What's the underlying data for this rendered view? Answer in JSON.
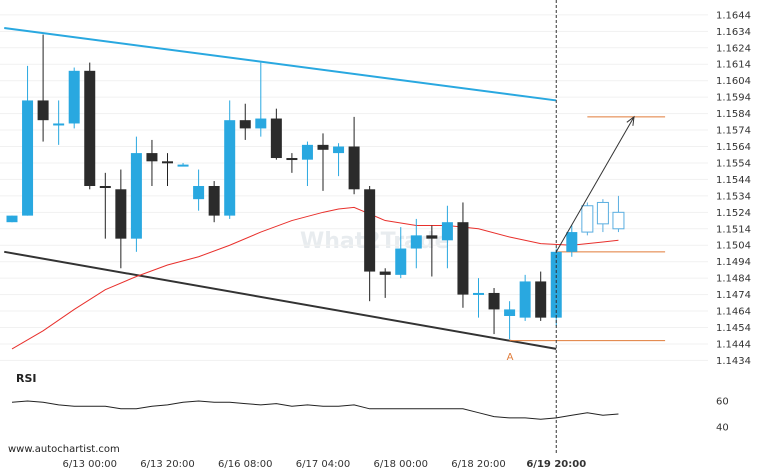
{
  "chart_data": {
    "type": "candlestick",
    "y_ticks": [
      "1.1644",
      "1.1634",
      "1.1624",
      "1.1614",
      "1.1604",
      "1.1594",
      "1.1584",
      "1.1574",
      "1.1564",
      "1.1554",
      "1.1544",
      "1.1534",
      "1.1524",
      "1.1514",
      "1.1504",
      "1.1494",
      "1.1484",
      "1.1474",
      "1.1464",
      "1.1454",
      "1.1444",
      "1.1434"
    ],
    "ylim": [
      1.143,
      1.165
    ],
    "x_ticks": [
      {
        "label": "6/13 00:00",
        "index": 5,
        "bold": false
      },
      {
        "label": "6/13 20:00",
        "index": 10,
        "bold": false
      },
      {
        "label": "6/16 08:00",
        "index": 15,
        "bold": false
      },
      {
        "label": "6/17 04:00",
        "index": 20,
        "bold": false
      },
      {
        "label": "6/18 00:00",
        "index": 25,
        "bold": false
      },
      {
        "label": "6/18 20:00",
        "index": 30,
        "bold": false
      },
      {
        "label": "6/19 20:00",
        "index": 35,
        "bold": true
      }
    ],
    "candles": [
      {
        "o": 1.1518,
        "h": 1.1522,
        "l": 1.1518,
        "c": 1.1522
      },
      {
        "o": 1.1522,
        "h": 1.1613,
        "l": 1.1522,
        "c": 1.1592
      },
      {
        "o": 1.1592,
        "h": 1.1632,
        "l": 1.1567,
        "c": 1.158
      },
      {
        "o": 1.1578,
        "h": 1.1592,
        "l": 1.1565,
        "c": 1.1578
      },
      {
        "o": 1.1578,
        "h": 1.1612,
        "l": 1.1575,
        "c": 1.161
      },
      {
        "o": 1.161,
        "h": 1.1615,
        "l": 1.1538,
        "c": 1.154
      },
      {
        "o": 1.154,
        "h": 1.1548,
        "l": 1.1508,
        "c": 1.1539
      },
      {
        "o": 1.1538,
        "h": 1.155,
        "l": 1.149,
        "c": 1.1508
      },
      {
        "o": 1.1508,
        "h": 1.157,
        "l": 1.15,
        "c": 1.156
      },
      {
        "o": 1.156,
        "h": 1.1568,
        "l": 1.154,
        "c": 1.1555
      },
      {
        "o": 1.1555,
        "h": 1.156,
        "l": 1.154,
        "c": 1.1554
      },
      {
        "o": 1.1553,
        "h": 1.1554,
        "l": 1.1552,
        "c": 1.1553
      },
      {
        "o": 1.1532,
        "h": 1.155,
        "l": 1.1525,
        "c": 1.154
      },
      {
        "o": 1.154,
        "h": 1.1543,
        "l": 1.1518,
        "c": 1.1522
      },
      {
        "o": 1.1522,
        "h": 1.1592,
        "l": 1.152,
        "c": 1.158
      },
      {
        "o": 1.158,
        "h": 1.159,
        "l": 1.1568,
        "c": 1.1575
      },
      {
        "o": 1.1575,
        "h": 1.1615,
        "l": 1.157,
        "c": 1.1581
      },
      {
        "o": 1.1581,
        "h": 1.1587,
        "l": 1.1556,
        "c": 1.1557
      },
      {
        "o": 1.1557,
        "h": 1.156,
        "l": 1.1548,
        "c": 1.1556
      },
      {
        "o": 1.1556,
        "h": 1.1567,
        "l": 1.154,
        "c": 1.1565
      },
      {
        "o": 1.1565,
        "h": 1.1572,
        "l": 1.1537,
        "c": 1.1562
      },
      {
        "o": 1.156,
        "h": 1.1566,
        "l": 1.1546,
        "c": 1.1564
      },
      {
        "o": 1.1564,
        "h": 1.1582,
        "l": 1.1535,
        "c": 1.1538
      },
      {
        "o": 1.1538,
        "h": 1.154,
        "l": 1.147,
        "c": 1.1488
      },
      {
        "o": 1.1488,
        "h": 1.149,
        "l": 1.1472,
        "c": 1.1486
      },
      {
        "o": 1.1486,
        "h": 1.1515,
        "l": 1.1484,
        "c": 1.1502
      },
      {
        "o": 1.1502,
        "h": 1.152,
        "l": 1.149,
        "c": 1.151
      },
      {
        "o": 1.151,
        "h": 1.1516,
        "l": 1.1485,
        "c": 1.1508
      },
      {
        "o": 1.1507,
        "h": 1.1528,
        "l": 1.149,
        "c": 1.1518
      },
      {
        "o": 1.1518,
        "h": 1.153,
        "l": 1.1466,
        "c": 1.1474
      },
      {
        "o": 1.1474,
        "h": 1.1484,
        "l": 1.146,
        "c": 1.1475
      },
      {
        "o": 1.1475,
        "h": 1.1478,
        "l": 1.145,
        "c": 1.1465
      },
      {
        "o": 1.1461,
        "h": 1.147,
        "l": 1.1447,
        "c": 1.1465
      },
      {
        "o": 1.146,
        "h": 1.1486,
        "l": 1.1458,
        "c": 1.1482
      },
      {
        "o": 1.1482,
        "h": 1.1488,
        "l": 1.1458,
        "c": 1.146
      },
      {
        "o": 1.146,
        "h": 1.1502,
        "l": 1.1455,
        "c": 1.15
      },
      {
        "o": 1.15,
        "h": 1.1516,
        "l": 1.1497,
        "c": 1.1512
      },
      {
        "o": 1.1512,
        "h": 1.153,
        "l": 1.151,
        "c": 1.1528
      },
      {
        "o": 1.1517,
        "h": 1.1532,
        "l": 1.1512,
        "c": 1.153
      },
      {
        "o": 1.1514,
        "h": 1.1534,
        "l": 1.1512,
        "c": 1.1524
      }
    ],
    "ma_line": [
      {
        "i": 0,
        "v": 1.1441
      },
      {
        "i": 2,
        "v": 1.1452
      },
      {
        "i": 4,
        "v": 1.1465
      },
      {
        "i": 6,
        "v": 1.1477
      },
      {
        "i": 8,
        "v": 1.1485
      },
      {
        "i": 10,
        "v": 1.1492
      },
      {
        "i": 12,
        "v": 1.1497
      },
      {
        "i": 14,
        "v": 1.1504
      },
      {
        "i": 16,
        "v": 1.1512
      },
      {
        "i": 18,
        "v": 1.1519
      },
      {
        "i": 20,
        "v": 1.1524
      },
      {
        "i": 21,
        "v": 1.1526
      },
      {
        "i": 22,
        "v": 1.1527
      },
      {
        "i": 23,
        "v": 1.1523
      },
      {
        "i": 24,
        "v": 1.1519
      },
      {
        "i": 26,
        "v": 1.1516
      },
      {
        "i": 28,
        "v": 1.1516
      },
      {
        "i": 30,
        "v": 1.1514
      },
      {
        "i": 32,
        "v": 1.1509
      },
      {
        "i": 34,
        "v": 1.1505
      },
      {
        "i": 36,
        "v": 1.1504
      },
      {
        "i": 37,
        "v": 1.1505
      },
      {
        "i": 38,
        "v": 1.1506
      },
      {
        "i": 39,
        "v": 1.1507
      }
    ],
    "upper_channel": {
      "from": {
        "i": -0.5,
        "v": 1.1636
      },
      "to": {
        "i": 35,
        "v": 1.1592
      }
    },
    "lower_channel": {
      "from": {
        "i": -0.5,
        "v": 1.15
      },
      "to": {
        "i": 35,
        "v": 1.1441
      }
    },
    "levels": [
      {
        "v": 1.1582,
        "from_i": 37,
        "to_i": 42
      },
      {
        "v": 1.15,
        "from_i": 35,
        "to_i": 42
      },
      {
        "v": 1.1446,
        "from_i": 32,
        "to_i": 42
      }
    ],
    "forecast_arrow": {
      "from": {
        "i": 35,
        "v": 1.15
      },
      "to": {
        "i": 40,
        "v": 1.1582
      }
    },
    "point_label": {
      "text": "A",
      "i": 32,
      "v": 1.1439
    },
    "vline_index": 35,
    "rsi": {
      "label": "RSI",
      "ticks": [
        "60",
        "40"
      ],
      "ylim": [
        30,
        70
      ],
      "values": [
        59,
        60,
        59,
        57,
        56,
        56,
        56,
        54,
        54,
        56,
        57,
        59,
        60,
        59,
        59,
        58,
        57,
        58,
        56,
        57,
        56,
        56,
        57,
        54,
        54,
        54,
        54,
        54,
        54,
        54,
        51,
        48,
        47,
        47,
        46,
        47,
        49,
        51,
        49,
        50
      ]
    },
    "watermark": "What2Trade",
    "source": "www.autochartist.com"
  }
}
